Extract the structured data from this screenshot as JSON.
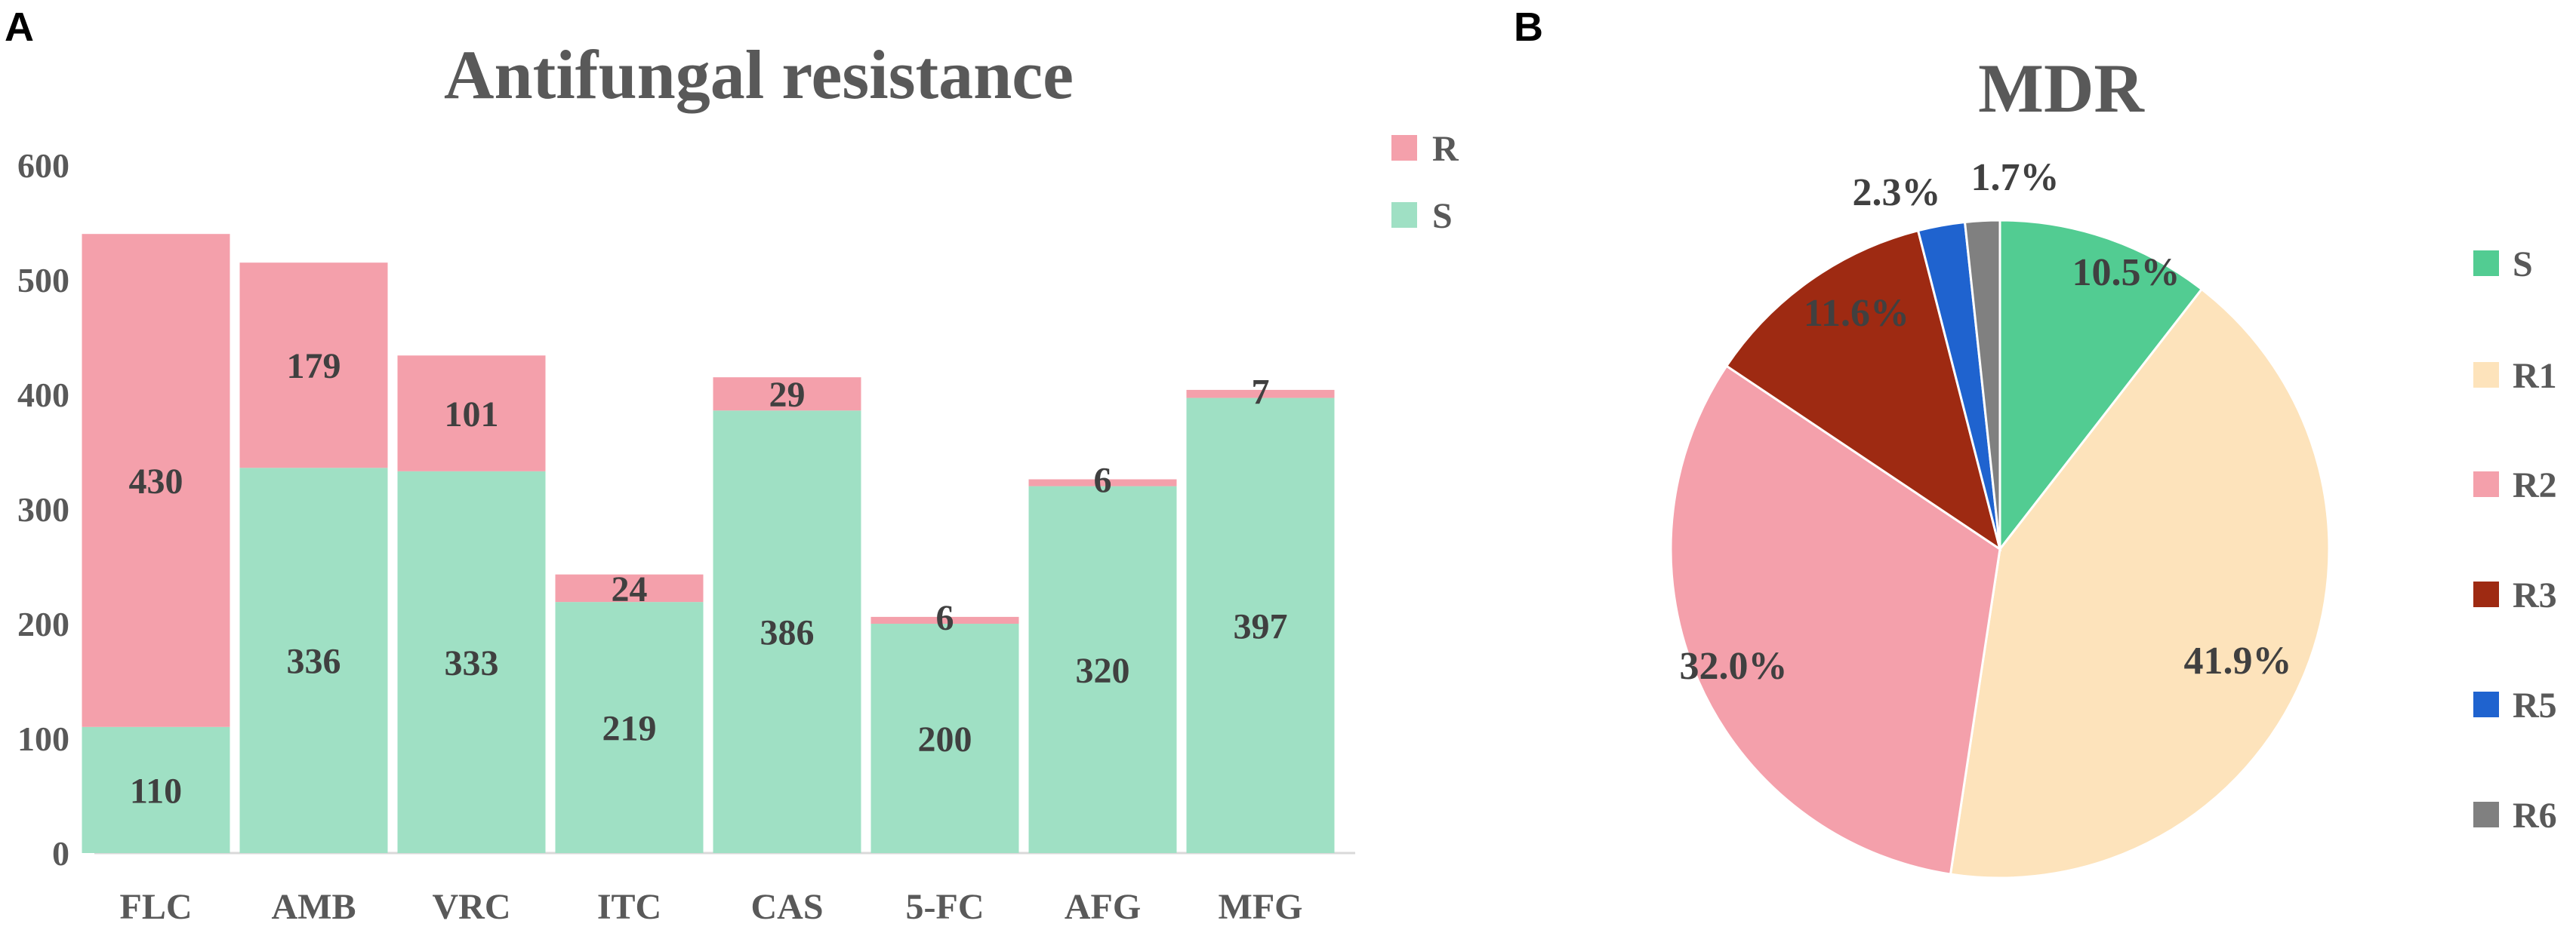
{
  "panels": {
    "a": "A",
    "b": "B"
  },
  "chart_data": [
    {
      "type": "bar",
      "stacked": true,
      "title": "Antifungal resistance",
      "categories": [
        "FLC",
        "AMB",
        "VRC",
        "ITC",
        "CAS",
        "5-FC",
        "AFG",
        "MFG"
      ],
      "series": [
        {
          "name": "S",
          "color": "#9fe0c4",
          "values": [
            110,
            336,
            333,
            219,
            386,
            200,
            320,
            397
          ]
        },
        {
          "name": "R",
          "color": "#f4a0ab",
          "values": [
            430,
            179,
            101,
            24,
            29,
            6,
            6,
            7
          ]
        }
      ],
      "legend": [
        "R",
        "S"
      ],
      "yticks": [
        "0",
        "100",
        "200",
        "300",
        "400",
        "500",
        "600"
      ],
      "ylim": [
        0,
        600
      ],
      "legend_position": "top-right"
    },
    {
      "type": "pie",
      "title": "MDR",
      "slices": [
        {
          "name": "S",
          "value": 10.5,
          "label": "10.5%",
          "color": "#52cc92"
        },
        {
          "name": "R1",
          "value": 41.9,
          "label": "41.9%",
          "color": "#fde3bb"
        },
        {
          "name": "R2",
          "value": 32.0,
          "label": "32.0%",
          "color": "#f4a0ab"
        },
        {
          "name": "R3",
          "value": 11.6,
          "label": "11.6%",
          "color": "#9e2a12"
        },
        {
          "name": "R5",
          "value": 2.3,
          "label": "2.3%",
          "color": "#1f63cf"
        },
        {
          "name": "R6",
          "value": 1.7,
          "label": "1.7%",
          "color": "#808080"
        }
      ],
      "legend": [
        "S",
        "R1",
        "R2",
        "R3",
        "R5",
        "R6"
      ],
      "legend_position": "right"
    }
  ]
}
